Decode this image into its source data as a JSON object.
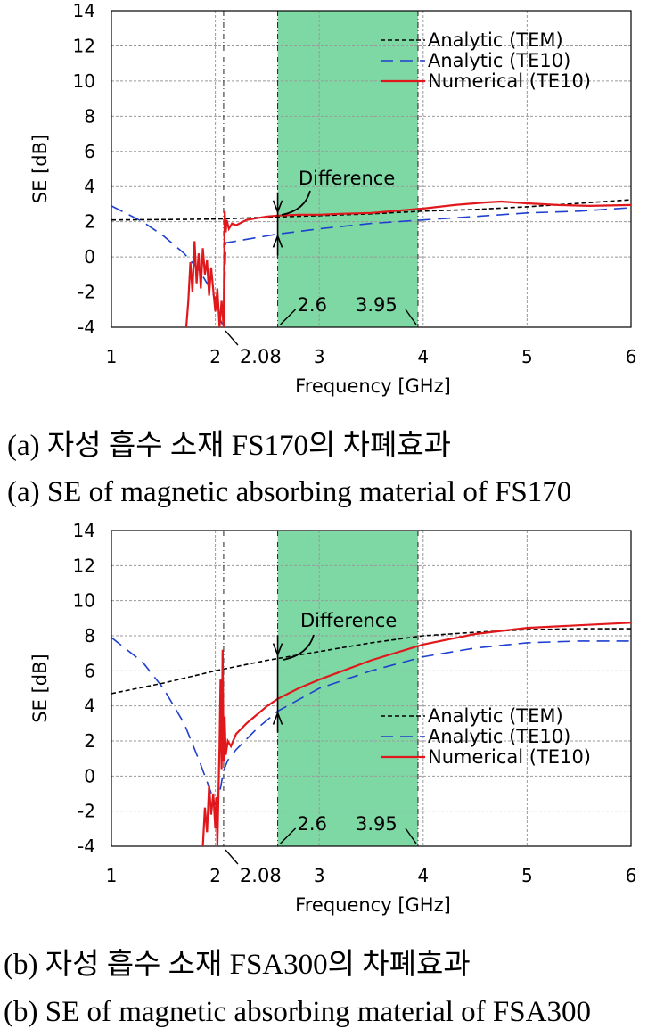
{
  "chart_data": [
    {
      "type": "line",
      "xlabel": "Frequency [GHz]",
      "ylabel": "SE [dB]",
      "xlim": [
        1,
        6
      ],
      "ylim": [
        -4,
        14
      ],
      "xticks": [
        "1",
        "2",
        "3",
        "4",
        "5",
        "6"
      ],
      "yticks": [
        "-4",
        "-2",
        "0",
        "2",
        "4",
        "6",
        "8",
        "10",
        "12",
        "14"
      ],
      "grid": true,
      "legend_position": "top-right",
      "shaded_band": {
        "x": [
          2.6,
          3.95
        ],
        "color": "#7dd8a4"
      },
      "vline": 2.08,
      "annotations": {
        "difference": "Difference",
        "cutoff": "2.08",
        "band_start": "2.6",
        "band_end": "3.95"
      },
      "series": [
        {
          "name": "Analytic (TEM)",
          "color": "#000000",
          "dash": "5,3",
          "x": [
            1,
            1.5,
            2,
            2.5,
            3,
            3.5,
            4,
            4.5,
            5,
            5.5,
            6
          ],
          "y": [
            2.1,
            2.12,
            2.15,
            2.25,
            2.35,
            2.45,
            2.6,
            2.7,
            2.85,
            3.05,
            3.25
          ]
        },
        {
          "name": "Analytic (TE10)",
          "color": "#1f3fd0",
          "dash": "14,8",
          "x": [
            1,
            1.3,
            1.5,
            1.7,
            1.85,
            1.95,
            2.02,
            2.05,
            2.08,
            2.1,
            2.2,
            2.4,
            2.6,
            3,
            3.5,
            4,
            4.5,
            5,
            5.5,
            6
          ],
          "y": [
            2.9,
            2.0,
            1.2,
            0.2,
            -0.8,
            -1.8,
            -2.6,
            -3.6,
            -4,
            0.8,
            0.9,
            1.1,
            1.3,
            1.6,
            1.9,
            2.1,
            2.3,
            2.5,
            2.6,
            2.8
          ]
        },
        {
          "name": "Numerical (TE10)",
          "color": "#e0181c",
          "dash": "",
          "x": [
            1.72,
            1.74,
            1.76,
            1.78,
            1.8,
            1.82,
            1.84,
            1.86,
            1.88,
            1.9,
            1.92,
            1.94,
            1.96,
            1.98,
            2.0,
            2.02,
            2.04,
            2.06,
            2.08,
            2.09,
            2.1,
            2.11,
            2.13,
            2.16,
            2.2,
            2.3,
            2.4,
            2.5,
            2.6,
            2.8,
            3,
            3.2,
            3.5,
            4,
            4.3,
            4.6,
            4.75,
            5,
            5.3,
            5.6,
            6
          ],
          "y": [
            -4,
            -2.5,
            -0.3,
            -2,
            0.9,
            -1.5,
            0.2,
            -1.8,
            0.5,
            -1,
            -0.2,
            -2.2,
            -0.6,
            -1.9,
            -3.1,
            -1.8,
            -4,
            -2.5,
            -4,
            2.6,
            1.4,
            2.1,
            1.6,
            1.9,
            1.8,
            2.1,
            2.2,
            2.3,
            2.35,
            2.4,
            2.4,
            2.45,
            2.5,
            2.75,
            2.95,
            3.1,
            3.15,
            3.05,
            2.95,
            2.9,
            2.95
          ]
        }
      ]
    },
    {
      "type": "line",
      "xlabel": "Frequency [GHz]",
      "ylabel": "SE [dB]",
      "xlim": [
        1,
        6
      ],
      "ylim": [
        -4,
        14
      ],
      "xticks": [
        "1",
        "2",
        "3",
        "4",
        "5",
        "6"
      ],
      "yticks": [
        "-4",
        "-2",
        "0",
        "2",
        "4",
        "6",
        "8",
        "10",
        "12",
        "14"
      ],
      "grid": true,
      "legend_position": "lower-right",
      "shaded_band": {
        "x": [
          2.6,
          3.95
        ],
        "color": "#7dd8a4"
      },
      "vline": 2.08,
      "annotations": {
        "difference": "Difference",
        "cutoff": "2.08",
        "band_start": "2.6",
        "band_end": "3.95"
      },
      "series": [
        {
          "name": "Analytic (TEM)",
          "color": "#000000",
          "dash": "5,3",
          "x": [
            1,
            1.5,
            2,
            2.5,
            3,
            3.5,
            4,
            4.5,
            5,
            5.5,
            6
          ],
          "y": [
            4.7,
            5.3,
            6.0,
            6.6,
            7.1,
            7.6,
            8.0,
            8.2,
            8.35,
            8.4,
            8.4
          ]
        },
        {
          "name": "Analytic (TE10)",
          "color": "#1f3fd0",
          "dash": "14,8",
          "x": [
            1,
            1.3,
            1.5,
            1.7,
            1.85,
            1.95,
            2.0,
            2.04,
            2.08,
            2.12,
            2.2,
            2.4,
            2.6,
            3,
            3.5,
            4,
            4.5,
            5,
            5.5,
            6
          ],
          "y": [
            7.9,
            6.5,
            5.0,
            3.0,
            0.8,
            -0.8,
            -1.6,
            -1.0,
            0.3,
            0.9,
            1.5,
            2.7,
            3.7,
            5.0,
            6.0,
            6.8,
            7.3,
            7.6,
            7.7,
            7.7
          ]
        },
        {
          "name": "Numerical (TE10)",
          "color": "#e0181c",
          "dash": "",
          "x": [
            1.88,
            1.9,
            1.92,
            1.94,
            1.96,
            1.98,
            2.0,
            2.01,
            2.02,
            2.04,
            2.05,
            2.06,
            2.07,
            2.08,
            2.09,
            2.1,
            2.12,
            2.15,
            2.2,
            2.3,
            2.4,
            2.5,
            2.6,
            2.8,
            3,
            3.5,
            4,
            4.5,
            5,
            5.5,
            6
          ],
          "y": [
            -4,
            -1.8,
            -3.2,
            -0.5,
            -2.2,
            -1.0,
            -3.0,
            -1.2,
            -4,
            1.8,
            5.5,
            0.4,
            7.2,
            0.8,
            3.4,
            1.2,
            2.0,
            1.7,
            2.4,
            3.0,
            3.5,
            4.0,
            4.4,
            5.0,
            5.5,
            6.6,
            7.5,
            8.1,
            8.45,
            8.6,
            8.75
          ]
        }
      ]
    }
  ],
  "captions": {
    "a_kr": "(a) 자성 흡수 소재 FS170의 차폐효과",
    "a_en": "(a) SE of magnetic absorbing material of FS170",
    "b_kr": "(b) 자성 흡수 소재 FSA300의 차폐효과",
    "b_en": "(b) SE of magnetic absorbing material of FSA300"
  }
}
